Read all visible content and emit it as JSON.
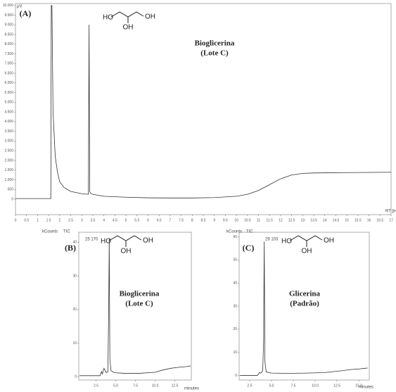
{
  "chart_data": [
    {
      "type": "line",
      "panel": "(A)",
      "title": "Bioglicerina",
      "subtitle": "(Lote C)",
      "ylabel": "µV",
      "xlabel": "RT [min]",
      "molecule": [
        "HO",
        "OH",
        "OH"
      ],
      "color": "#333333",
      "xlim": [
        0,
        17
      ],
      "ylim": [
        -800,
        10100
      ],
      "xticks": [
        0,
        0.5,
        1,
        1.5,
        2,
        2.5,
        3,
        3.5,
        4,
        4.5,
        5,
        5.5,
        6,
        6.5,
        7,
        7.5,
        8,
        8.5,
        9,
        9.5,
        10,
        10.5,
        11,
        11.5,
        12,
        12.5,
        13,
        13.5,
        14,
        14.5,
        15,
        15.5,
        16,
        16.5,
        17
      ],
      "yticks": [
        0,
        500,
        {
          "value": 1000,
          "label": "1.000"
        },
        {
          "value": 1500,
          "label": "1.500"
        },
        {
          "value": 2000,
          "label": "2.000"
        },
        {
          "value": 2500,
          "label": "2.500"
        },
        {
          "value": 3000,
          "label": "3.000"
        },
        {
          "value": 3500,
          "label": "3.500"
        },
        {
          "value": 4000,
          "label": "4.000"
        },
        {
          "value": 4500,
          "label": "4.500"
        },
        {
          "value": 5000,
          "label": "5.000"
        },
        {
          "value": 5500,
          "label": "5.500"
        },
        {
          "value": 6000,
          "label": "6.000"
        },
        {
          "value": 6500,
          "label": "6.500"
        },
        {
          "value": 7000,
          "label": "7.000"
        },
        {
          "value": 7500,
          "label": "7.500"
        },
        {
          "value": 8000,
          "label": "8.000"
        },
        {
          "value": 8500,
          "label": "8.500"
        },
        {
          "value": 9000,
          "label": "9.000"
        },
        {
          "value": 9500,
          "label": "9.500"
        },
        {
          "value": 10000,
          "label": "10.000"
        }
      ],
      "x": [
        0,
        1.6,
        1.62,
        1.65,
        1.7,
        1.8,
        1.9,
        2.0,
        2.2,
        2.5,
        3.0,
        3.3,
        3.33,
        3.36,
        3.4,
        3.5,
        4,
        5,
        6,
        7,
        8,
        9,
        10,
        10.5,
        11,
        11.5,
        12,
        12.5,
        13,
        13.5,
        14,
        15,
        16,
        17
      ],
      "values": [
        30,
        30,
        10000,
        10000,
        4500,
        2200,
        1400,
        900,
        600,
        400,
        280,
        250,
        9000,
        400,
        300,
        250,
        150,
        100,
        70,
        60,
        60,
        80,
        150,
        250,
        450,
        750,
        1050,
        1250,
        1330,
        1350,
        1360,
        1370,
        1380,
        1390
      ]
    },
    {
      "type": "line",
      "panel": "(B)",
      "title": "Bioglicerina",
      "subtitle": "(Lote C)",
      "ylabel": "kCounts",
      "xlabel": "minutes",
      "trace_label": "TIC",
      "peak_label": "25 170",
      "molecule": [
        "HO",
        "OH",
        "OH"
      ],
      "color": "#333333",
      "xlim": [
        0.3,
        14.6
      ],
      "ylim": [
        -1,
        43
      ],
      "xticks": [
        2.5,
        {
          "value": 5,
          "label": "5.0"
        },
        7.5,
        {
          "value": 10,
          "label": "10.0"
        },
        12.5
      ],
      "yticks": [
        0,
        10,
        20,
        30,
        40
      ],
      "x": [
        0.4,
        3.0,
        3.2,
        3.3,
        3.5,
        3.8,
        4.0,
        4.1,
        4.17,
        4.25,
        4.4,
        4.8,
        6,
        8,
        10,
        11,
        12,
        13,
        14,
        14.5
      ],
      "values": [
        0.3,
        0.3,
        1.5,
        0.8,
        2.5,
        1.2,
        1.5,
        20,
        41,
        5,
        1.8,
        1.2,
        1,
        1,
        1.3,
        2,
        2.5,
        2.8,
        3,
        3.2
      ]
    },
    {
      "type": "line",
      "panel": "(C)",
      "title": "Glicerina",
      "subtitle": "(Padrão)",
      "ylabel": "kCounts",
      "xlabel": "minutes",
      "trace_label": "TIC",
      "peak_label": "29 103",
      "molecule": [
        "HO",
        "OH",
        "OH"
      ],
      "color": "#333333",
      "xlim": [
        1.3,
        16.2
      ],
      "ylim": [
        -2,
        62
      ],
      "xticks": [
        2.5,
        {
          "value": 5,
          "label": "5.0"
        },
        7.5,
        {
          "value": 10,
          "label": "10.0"
        },
        12.5,
        {
          "value": 15,
          "label": "15.0"
        }
      ],
      "yticks": [
        0,
        10,
        20,
        30,
        40,
        50,
        60
      ],
      "x": [
        1.4,
        3.4,
        3.6,
        3.8,
        4.0,
        4.1,
        4.17,
        4.25,
        4.4,
        5,
        7,
        9,
        11,
        13,
        14,
        15,
        16
      ],
      "values": [
        0,
        0,
        1.2,
        1,
        2,
        15,
        58,
        6,
        1.5,
        1,
        0.9,
        1,
        1.2,
        2,
        2.5,
        2.8,
        3.2
      ]
    }
  ]
}
